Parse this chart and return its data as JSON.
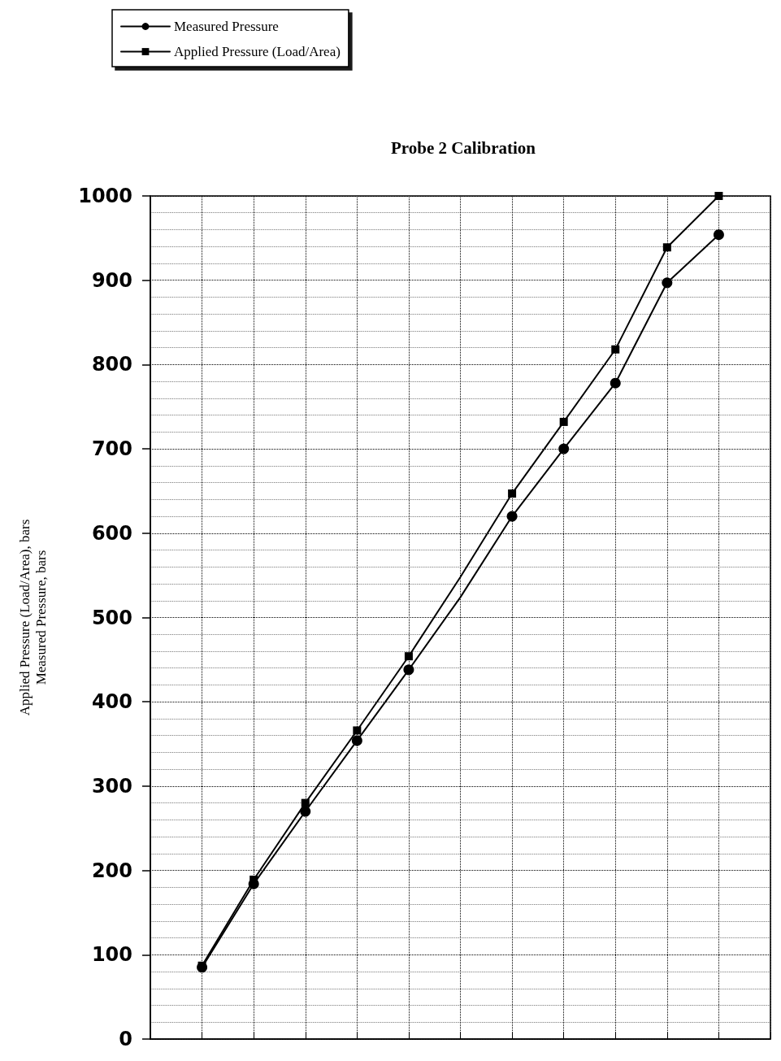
{
  "chart_data": {
    "type": "line",
    "title": "Probe 2 Calibration",
    "ylabel": "Applied Pressure (Load/Area), bars\nMeasured Pressure, bars",
    "categories": [
      null,
      null,
      null,
      null,
      null,
      null,
      null,
      null,
      null,
      null,
      null,
      null,
      null
    ],
    "series": [
      {
        "name": "Measured Pressure",
        "color": "#000000",
        "marker": "circle",
        "values": [
          null,
          85,
          184,
          270,
          354,
          438,
          524,
          620,
          700,
          778,
          897,
          954,
          null
        ]
      },
      {
        "name": "Applied Pressure (Load/Area)",
        "color": "#000000",
        "marker": "square",
        "values": [
          null,
          87,
          189,
          280,
          366,
          454,
          548,
          647,
          732,
          818,
          939,
          1000,
          null
        ]
      }
    ],
    "ylim": [
      0,
      1000
    ],
    "yticks": [
      0,
      100,
      200,
      300,
      400,
      500,
      600,
      700,
      800,
      900,
      1000
    ],
    "grid": true,
    "legend": "top left",
    "line_style": "solid"
  }
}
